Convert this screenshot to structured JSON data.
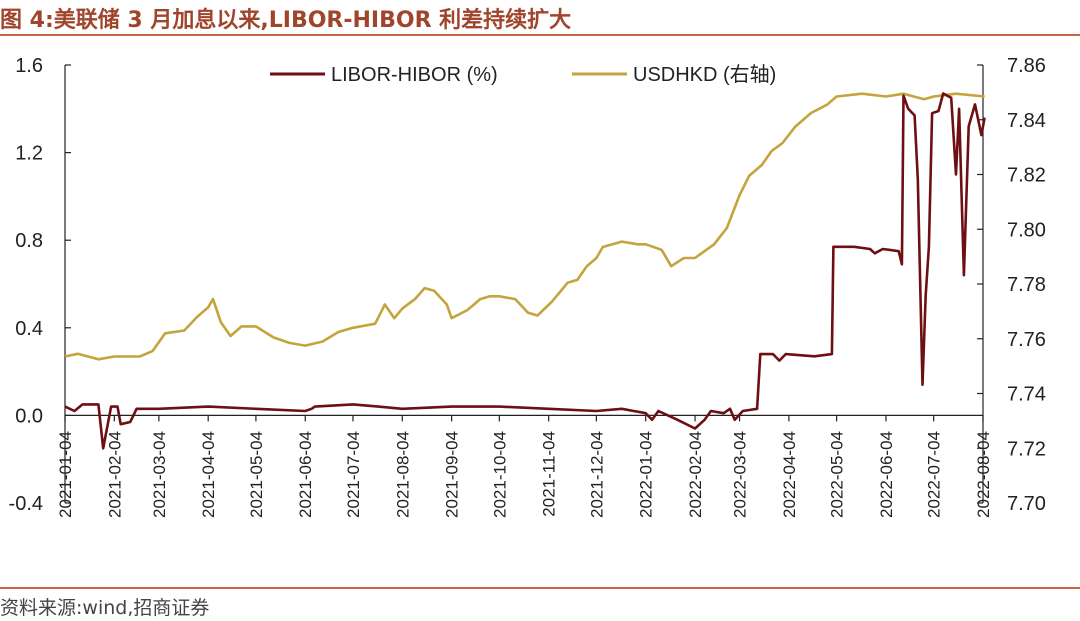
{
  "header": {
    "title": "图 4:美联储 3 月加息以来,LIBOR-HIBOR 利差持续扩大"
  },
  "footer": {
    "source": "资料来源:wind,招商证券"
  },
  "colors": {
    "libor_hibor": "#6e0f14",
    "usdhkd": "#c4a43c",
    "accent": "#c8644a"
  },
  "chart_data": {
    "type": "line",
    "left_axis": {
      "ylim": [
        -0.4,
        1.6
      ],
      "ticks": [
        "1.6",
        "1.2",
        "0.8",
        "0.4",
        "0.0",
        "-0.4"
      ]
    },
    "right_axis": {
      "ylim": [
        7.7,
        7.86
      ],
      "ticks": [
        "7.86",
        "7.84",
        "7.82",
        "7.80",
        "7.78",
        "7.76",
        "7.74",
        "7.72",
        "7.70"
      ]
    },
    "x_ticks": [
      "2021-01-04",
      "2021-02-04",
      "2021-03-04",
      "2021-04-04",
      "2021-05-04",
      "2021-06-04",
      "2021-07-04",
      "2021-08-04",
      "2021-09-04",
      "2021-10-04",
      "2021-11-04",
      "2021-12-04",
      "2022-01-04",
      "2022-02-04",
      "2022-03-04",
      "2022-04-04",
      "2022-05-04",
      "2022-06-04",
      "2022-07-04",
      "2022-08-04"
    ],
    "legend": [
      "LIBOR-HIBOR (%)",
      "USDHKD (右轴)"
    ],
    "series": [
      {
        "name": "LIBOR-HIBOR (%)",
        "axis": "left",
        "points": [
          [
            "2021-01-04",
            0.04
          ],
          [
            "2021-01-10",
            0.02
          ],
          [
            "2021-01-15",
            0.05
          ],
          [
            "2021-01-25",
            0.05
          ],
          [
            "2021-01-28",
            -0.15
          ],
          [
            "2021-02-02",
            0.04
          ],
          [
            "2021-02-06",
            0.04
          ],
          [
            "2021-02-08",
            -0.04
          ],
          [
            "2021-02-14",
            -0.03
          ],
          [
            "2021-02-18",
            0.03
          ],
          [
            "2021-03-04",
            0.03
          ],
          [
            "2021-04-04",
            0.04
          ],
          [
            "2021-05-04",
            0.03
          ],
          [
            "2021-06-04",
            0.02
          ],
          [
            "2021-06-08",
            0.03
          ],
          [
            "2021-06-10",
            0.04
          ],
          [
            "2021-07-04",
            0.05
          ],
          [
            "2021-07-20",
            0.04
          ],
          [
            "2021-08-04",
            0.03
          ],
          [
            "2021-09-04",
            0.04
          ],
          [
            "2021-10-04",
            0.04
          ],
          [
            "2021-11-04",
            0.03
          ],
          [
            "2021-12-04",
            0.02
          ],
          [
            "2021-12-20",
            0.03
          ],
          [
            "2022-01-04",
            0.01
          ],
          [
            "2022-01-08",
            -0.02
          ],
          [
            "2022-01-12",
            0.02
          ],
          [
            "2022-01-18",
            0.0
          ],
          [
            "2022-01-24",
            -0.02
          ],
          [
            "2022-02-04",
            -0.06
          ],
          [
            "2022-02-10",
            -0.02
          ],
          [
            "2022-02-14",
            0.02
          ],
          [
            "2022-02-22",
            0.01
          ],
          [
            "2022-02-26",
            0.03
          ],
          [
            "2022-03-01",
            -0.02
          ],
          [
            "2022-03-06",
            0.02
          ],
          [
            "2022-03-15",
            0.03
          ],
          [
            "2022-03-17",
            0.28
          ],
          [
            "2022-03-25",
            0.28
          ],
          [
            "2022-03-29",
            0.25
          ],
          [
            "2022-04-02",
            0.28
          ],
          [
            "2022-04-20",
            0.27
          ],
          [
            "2022-05-01",
            0.28
          ],
          [
            "2022-05-02",
            0.77
          ],
          [
            "2022-05-15",
            0.77
          ],
          [
            "2022-05-25",
            0.76
          ],
          [
            "2022-05-28",
            0.74
          ],
          [
            "2022-06-02",
            0.76
          ],
          [
            "2022-06-12",
            0.75
          ],
          [
            "2022-06-14",
            0.69
          ],
          [
            "2022-06-15",
            1.46
          ],
          [
            "2022-06-18",
            1.4
          ],
          [
            "2022-06-22",
            1.37
          ],
          [
            "2022-06-24",
            1.08
          ],
          [
            "2022-06-27",
            0.14
          ],
          [
            "2022-06-29",
            0.55
          ],
          [
            "2022-07-01",
            0.77
          ],
          [
            "2022-07-03",
            1.38
          ],
          [
            "2022-07-07",
            1.39
          ],
          [
            "2022-07-10",
            1.47
          ],
          [
            "2022-07-15",
            1.45
          ],
          [
            "2022-07-18",
            1.1
          ],
          [
            "2022-07-20",
            1.4
          ],
          [
            "2022-07-23",
            0.64
          ],
          [
            "2022-07-26",
            1.32
          ],
          [
            "2022-07-30",
            1.42
          ],
          [
            "2022-08-03",
            1.28
          ],
          [
            "2022-08-05",
            1.36
          ]
        ]
      },
      {
        "name": "USDHKD (右轴)",
        "axis": "right",
        "points": [
          [
            "2021-01-04",
            7.7535
          ],
          [
            "2021-01-12",
            7.7545
          ],
          [
            "2021-01-25",
            7.7525
          ],
          [
            "2021-02-04",
            7.7535
          ],
          [
            "2021-02-20",
            7.7535
          ],
          [
            "2021-02-28",
            7.7555
          ],
          [
            "2021-03-08",
            7.762
          ],
          [
            "2021-03-20",
            7.763
          ],
          [
            "2021-03-28",
            7.768
          ],
          [
            "2021-04-04",
            7.7715
          ],
          [
            "2021-04-07",
            7.7745
          ],
          [
            "2021-04-12",
            7.766
          ],
          [
            "2021-04-18",
            7.761
          ],
          [
            "2021-04-25",
            7.7645
          ],
          [
            "2021-05-04",
            7.7645
          ],
          [
            "2021-05-15",
            7.7605
          ],
          [
            "2021-05-25",
            7.7585
          ],
          [
            "2021-06-04",
            7.7575
          ],
          [
            "2021-06-15",
            7.759
          ],
          [
            "2021-06-25",
            7.7625
          ],
          [
            "2021-07-04",
            7.764
          ],
          [
            "2021-07-18",
            7.7655
          ],
          [
            "2021-07-24",
            7.7725
          ],
          [
            "2021-07-30",
            7.7675
          ],
          [
            "2021-08-04",
            7.771
          ],
          [
            "2021-08-12",
            7.7745
          ],
          [
            "2021-08-18",
            7.7785
          ],
          [
            "2021-08-24",
            7.7775
          ],
          [
            "2021-09-01",
            7.7725
          ],
          [
            "2021-09-04",
            7.7675
          ],
          [
            "2021-09-14",
            7.7705
          ],
          [
            "2021-09-22",
            7.7745
          ],
          [
            "2021-09-28",
            7.7755
          ],
          [
            "2021-10-04",
            7.7755
          ],
          [
            "2021-10-14",
            7.7745
          ],
          [
            "2021-10-22",
            7.7695
          ],
          [
            "2021-10-28",
            7.7685
          ],
          [
            "2021-11-06",
            7.7735
          ],
          [
            "2021-11-16",
            7.7805
          ],
          [
            "2021-11-22",
            7.7815
          ],
          [
            "2021-11-28",
            7.7865
          ],
          [
            "2021-12-04",
            7.7895
          ],
          [
            "2021-12-08",
            7.7935
          ],
          [
            "2021-12-20",
            7.7955
          ],
          [
            "2021-12-30",
            7.7945
          ],
          [
            "2022-01-04",
            7.7945
          ],
          [
            "2022-01-14",
            7.7925
          ],
          [
            "2022-01-20",
            7.7865
          ],
          [
            "2022-01-28",
            7.7895
          ],
          [
            "2022-02-04",
            7.7895
          ],
          [
            "2022-02-16",
            7.7945
          ],
          [
            "2022-02-24",
            7.8005
          ],
          [
            "2022-03-04",
            7.8125
          ],
          [
            "2022-03-10",
            7.8195
          ],
          [
            "2022-03-18",
            7.8235
          ],
          [
            "2022-03-24",
            7.8285
          ],
          [
            "2022-03-31",
            7.8315
          ],
          [
            "2022-04-08",
            7.8375
          ],
          [
            "2022-04-18",
            7.8425
          ],
          [
            "2022-04-28",
            7.8455
          ],
          [
            "2022-05-04",
            7.8485
          ],
          [
            "2022-05-20",
            7.8495
          ],
          [
            "2022-06-04",
            7.8485
          ],
          [
            "2022-06-15",
            7.8495
          ],
          [
            "2022-06-28",
            7.8475
          ],
          [
            "2022-07-04",
            7.8485
          ],
          [
            "2022-07-18",
            7.8495
          ],
          [
            "2022-08-05",
            7.8485
          ]
        ]
      }
    ]
  }
}
